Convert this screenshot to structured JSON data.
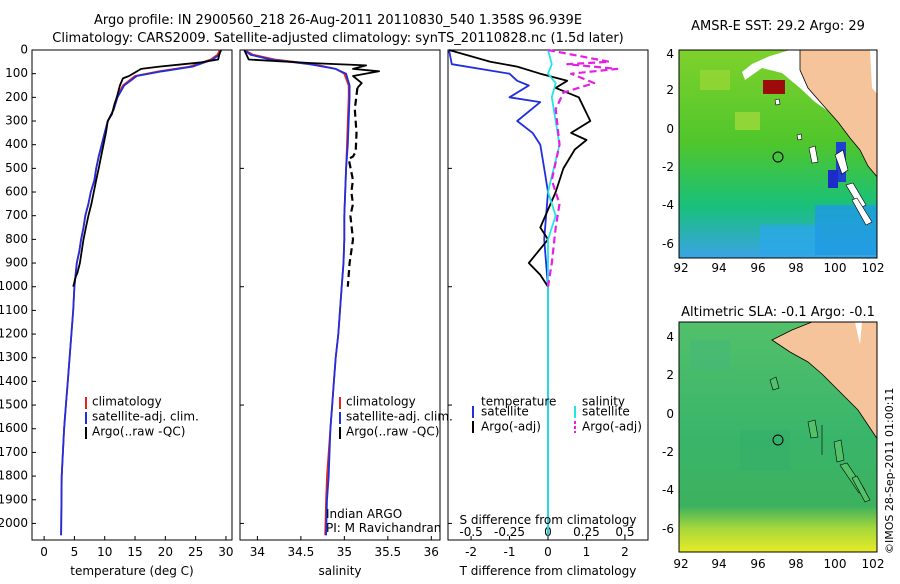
{
  "header": {
    "line1": "Argo profile: IN 2900560_218 26-Aug-2011 20110830_540 1.358S 96.939E",
    "line2": "Climatology: CARS2009. Satellite-adjusted climatology: synTS_20110828.nc (1.5d later)"
  },
  "colors": {
    "climatology": "#e8231e",
    "satellite": "#1f2fe0",
    "argo": "#000000",
    "sal_satellite": "#22e6e6",
    "sal_argo": "#e61ee6",
    "land": "#f6c49a"
  },
  "chart_data": [
    {
      "type": "line",
      "title": "",
      "xlabel": "temperature (deg C)",
      "ylabel": "",
      "xlim": [
        -2,
        31
      ],
      "ylim": [
        2070,
        0
      ],
      "xticks": [
        0,
        5,
        10,
        15,
        20,
        25,
        30
      ],
      "yticks": [
        0,
        100,
        200,
        300,
        400,
        500,
        600,
        700,
        800,
        900,
        1000,
        1100,
        1200,
        1300,
        1400,
        1500,
        1600,
        1700,
        1800,
        1900,
        2000
      ],
      "legend": {
        "placement": "bottom-center",
        "entries": [
          "climatology",
          "satellite-adj. clim.",
          "Argo(..raw -QC)"
        ]
      },
      "series": [
        {
          "name": "climatology",
          "color": "red",
          "style": "solid",
          "x": [
            29.0,
            28.6,
            27.5,
            24.0,
            19.0,
            15.0,
            13.0,
            12.0,
            11.5,
            10.5,
            10.0,
            9.5,
            9.0,
            8.6,
            8.3,
            7.7,
            7.3,
            6.8,
            6.5,
            6.1,
            5.8,
            5.4,
            5.0,
            4.8,
            4.5,
            4.2,
            3.9,
            3.6,
            3.3,
            3.1,
            2.9,
            2.8
          ],
          "y": [
            0,
            20,
            40,
            70,
            90,
            110,
            150,
            200,
            250,
            300,
            350,
            400,
            450,
            500,
            550,
            600,
            650,
            700,
            750,
            800,
            850,
            900,
            1000,
            1100,
            1200,
            1300,
            1400,
            1500,
            1600,
            1700,
            1800,
            2050
          ]
        },
        {
          "name": "satellite-adj. clim.",
          "color": "blue",
          "style": "solid",
          "x": [
            29.2,
            28.9,
            27.8,
            24.5,
            19.5,
            15.3,
            13.2,
            12.1,
            11.5,
            10.5,
            10.0,
            9.5,
            9.0,
            8.6,
            8.3,
            7.7,
            7.3,
            6.8,
            6.5,
            6.1,
            5.8,
            5.4,
            5.0,
            4.8,
            4.5,
            4.2,
            3.9,
            3.6,
            3.3,
            3.1,
            2.9,
            2.8
          ],
          "y": [
            0,
            20,
            40,
            70,
            90,
            110,
            150,
            200,
            250,
            300,
            350,
            400,
            450,
            500,
            550,
            600,
            650,
            700,
            750,
            800,
            850,
            900,
            1000,
            1100,
            1200,
            1300,
            1400,
            1500,
            1600,
            1700,
            1800,
            2050
          ]
        },
        {
          "name": "Argo(..raw -QC)",
          "color": "black",
          "style": "solid",
          "x": [
            29.2,
            29.0,
            28.7,
            26.0,
            23.0,
            19.0,
            16.0,
            15.0,
            14.0,
            13.0,
            12.5,
            12.0,
            11.6,
            11.2,
            10.5,
            10.2,
            9.8,
            9.4,
            9.0,
            8.6,
            8.2,
            7.8,
            7.3,
            6.9,
            6.5,
            6.2,
            5.9,
            5.5,
            5.2,
            5.0,
            4.8
          ],
          "y": [
            0,
            10,
            40,
            52,
            60,
            70,
            80,
            95,
            110,
            120,
            150,
            200,
            230,
            270,
            300,
            350,
            400,
            450,
            500,
            550,
            600,
            650,
            700,
            750,
            800,
            850,
            900,
            940,
            960,
            980,
            1000
          ]
        }
      ]
    },
    {
      "type": "line",
      "title": "",
      "xlabel": "salinity",
      "ylabel": "",
      "xlim": [
        33.8,
        36.1
      ],
      "ylim": [
        2070,
        0
      ],
      "xticks": [
        34,
        34.5,
        35,
        35.5,
        36
      ],
      "annotations": [
        "Indian ARGO",
        "PI: M Ravichandran"
      ],
      "legend": {
        "placement": "bottom-right",
        "entries": [
          "climatology",
          "satellite-adj. clim.",
          "Argo(..raw -QC)"
        ]
      },
      "series": [
        {
          "name": "climatology",
          "color": "red",
          "style": "solid",
          "x": [
            33.85,
            33.95,
            34.2,
            34.65,
            34.9,
            35.0,
            35.05,
            35.05,
            35.04,
            35.03,
            35.02,
            35.01,
            35.0,
            35.0,
            34.99,
            34.97,
            34.95,
            34.93,
            34.9,
            34.88,
            34.86,
            34.84,
            34.8,
            34.79,
            34.78
          ],
          "y": [
            0,
            20,
            40,
            60,
            80,
            100,
            150,
            200,
            300,
            400,
            500,
            600,
            700,
            800,
            900,
            1000,
            1100,
            1200,
            1300,
            1400,
            1500,
            1600,
            1800,
            1900,
            2050
          ]
        },
        {
          "name": "satellite-adj. clim.",
          "color": "blue",
          "style": "solid",
          "x": [
            33.85,
            33.92,
            34.15,
            34.6,
            34.9,
            35.02,
            35.06,
            35.06,
            35.05,
            35.04,
            35.02,
            35.01,
            35.0,
            35.0,
            34.99,
            34.97,
            34.95,
            34.93,
            34.9,
            34.88,
            34.86,
            34.84,
            34.82,
            34.8,
            34.79
          ],
          "y": [
            0,
            20,
            40,
            60,
            80,
            100,
            150,
            200,
            300,
            400,
            500,
            600,
            700,
            800,
            900,
            1000,
            1100,
            1200,
            1300,
            1400,
            1500,
            1600,
            1800,
            1900,
            2050
          ]
        },
        {
          "name": "Argo(..raw -QC)",
          "color": "black",
          "style": "solid",
          "x": [
            33.85,
            33.9,
            34.6,
            35.25,
            35.1,
            35.4,
            35.1,
            35.2,
            35.15
          ],
          "y": [
            0,
            40,
            55,
            65,
            80,
            90,
            110,
            140,
            160
          ]
        },
        {
          "name": "Argo(-QC dashed)",
          "color": "black",
          "style": "dashed",
          "x": [
            35.15,
            35.12,
            35.14,
            35.13,
            35.1,
            35.05,
            35.1,
            35.08,
            35.1,
            35.07,
            35.1,
            35.08,
            35.06,
            35.05,
            35.04
          ],
          "y": [
            160,
            250,
            350,
            430,
            450,
            460,
            550,
            600,
            650,
            700,
            800,
            850,
            900,
            950,
            1000
          ]
        }
      ]
    },
    {
      "type": "line",
      "title": "",
      "xlabel": "T difference from climatology",
      "ylabel": "",
      "xlim": [
        -2.6,
        2.6
      ],
      "ylim": [
        2070,
        0
      ],
      "xticks": [
        -2,
        -1,
        0,
        1,
        2
      ],
      "top_axis": {
        "label": "S difference from climatology",
        "ticks": [
          "-0.5",
          "-0.25",
          "0",
          "0.25",
          "0.5"
        ]
      },
      "legend": {
        "placement": "bottom-center",
        "headers": [
          "temperature",
          "salinity"
        ],
        "entries": [
          "satellite",
          "Argo(-adj)",
          "satellite",
          "Argo(-adj)"
        ]
      },
      "series": [
        {
          "name": "satellite",
          "group": "temperature",
          "color": "blue",
          "style": "solid",
          "x": [
            -2.6,
            -2.5,
            -1.0,
            -0.8,
            -0.5,
            -1.0,
            -0.2,
            -0.8,
            -0.4,
            -0.2,
            -0.1,
            0.0,
            -0.1,
            0.0,
            0.0,
            0.0,
            0.0,
            0.0,
            0.0,
            0.0,
            0.0
          ],
          "y": [
            0,
            60,
            100,
            130,
            150,
            200,
            220,
            300,
            350,
            400,
            500,
            600,
            800,
            1000,
            1200,
            1400,
            1500,
            1600,
            1800,
            1900,
            2050
          ]
        },
        {
          "name": "Argo(-adj)",
          "group": "temperature",
          "color": "black",
          "style": "solid",
          "x": [
            -2.6,
            -1.5,
            -0.8,
            -0.2,
            0.5,
            0.2,
            0.8,
            1.1,
            0.6,
            1.0,
            0.7,
            0.4,
            0.2,
            -0.2,
            0.0,
            -0.5,
            -0.2,
            0.0
          ],
          "y": [
            0,
            50,
            70,
            100,
            130,
            160,
            200,
            300,
            350,
            380,
            420,
            500,
            600,
            750,
            800,
            900,
            950,
            1000
          ]
        },
        {
          "name": "satellite",
          "group": "salinity",
          "color": "cyan",
          "style": "solid",
          "x": [
            0.0,
            0.1,
            0.0,
            0.2,
            0.1,
            0.3,
            0.0,
            0.2,
            0.0,
            0.0,
            0.0,
            0.0,
            0.0,
            0.0,
            0.0,
            0.0
          ],
          "y": [
            0,
            60,
            100,
            140,
            200,
            400,
            600,
            700,
            800,
            1000,
            1200,
            1400,
            1600,
            1800,
            1900,
            2050
          ]
        },
        {
          "name": "Argo(-adj)",
          "group": "salinity",
          "color": "magenta",
          "style": "dashed",
          "x": [
            0.0,
            1.6,
            0.5,
            1.8,
            0.6,
            1.2,
            0.4,
            0.2,
            0.3,
            0.1,
            0.3,
            0.2,
            0.1,
            0.0
          ],
          "y": [
            0,
            50,
            60,
            80,
            100,
            140,
            180,
            250,
            400,
            550,
            650,
            750,
            900,
            1000
          ]
        }
      ]
    }
  ],
  "maps": [
    {
      "title": "AMSR-E SST: 29.2  Argo: 29",
      "xticks": [
        "92",
        "94",
        "96",
        "98",
        "100",
        "102"
      ],
      "yticks": [
        "4",
        "2",
        "0",
        "-2",
        "-4",
        "-6"
      ],
      "argo_marker": {
        "lon": 96.939,
        "lat": -1.358
      }
    },
    {
      "title": "Altimetric SLA: -0.1  Argo: -0.1",
      "xticks": [
        "92",
        "94",
        "96",
        "98",
        "100",
        "102"
      ],
      "yticks": [
        "4",
        "2",
        "0",
        "-2",
        "-4",
        "-6"
      ],
      "argo_marker": {
        "lon": 96.939,
        "lat": -1.358
      }
    }
  ],
  "credit": "©IMOS 28-Sep-2011 01:00:11"
}
